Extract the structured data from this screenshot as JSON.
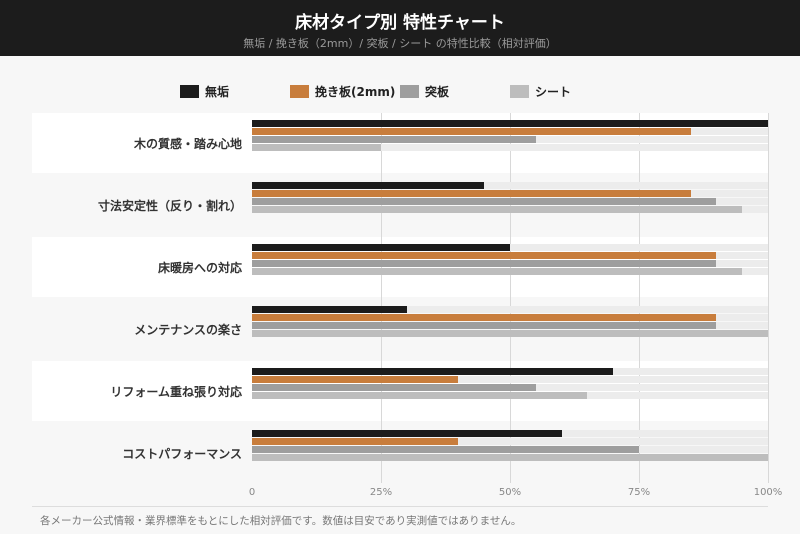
{
  "header": {
    "title": "床材タイプ別 特性チャート",
    "subtitle": "無垢 / 挽き板（2mm）/ 突板 / シート の特性比較（相対評価）"
  },
  "chart_data": {
    "type": "bar",
    "orientation": "horizontal",
    "title": "床材タイプ別 特性チャート",
    "categories": [
      "木の質感・踏み心地",
      "寸法安定性（反り・割れ）",
      "床暖房への対応",
      "メンテナンスの楽さ",
      "リフォーム重ね張り対応",
      "コストパフォーマンス"
    ],
    "series": [
      {
        "name": "無垢",
        "color": "#1c1c1c",
        "values": [
          100,
          45,
          50,
          30,
          70,
          60
        ]
      },
      {
        "name": "挽き板(2mm)",
        "color": "#c87d3c",
        "values": [
          85,
          85,
          90,
          90,
          40,
          40
        ]
      },
      {
        "name": "突板",
        "color": "#9e9e9e",
        "values": [
          55,
          90,
          90,
          90,
          55,
          75
        ]
      },
      {
        "name": "シート",
        "color": "#bdbdbd",
        "values": [
          25,
          95,
          95,
          100,
          65,
          100
        ]
      }
    ],
    "xlim": [
      0,
      100
    ],
    "ticks": [
      "0",
      "25%",
      "50%",
      "75%",
      "100%"
    ],
    "legend": "top"
  },
  "note": "各メーカー公式情報・業界標準をもとにした相対評価です。数値は目安であり実測値ではありません。"
}
